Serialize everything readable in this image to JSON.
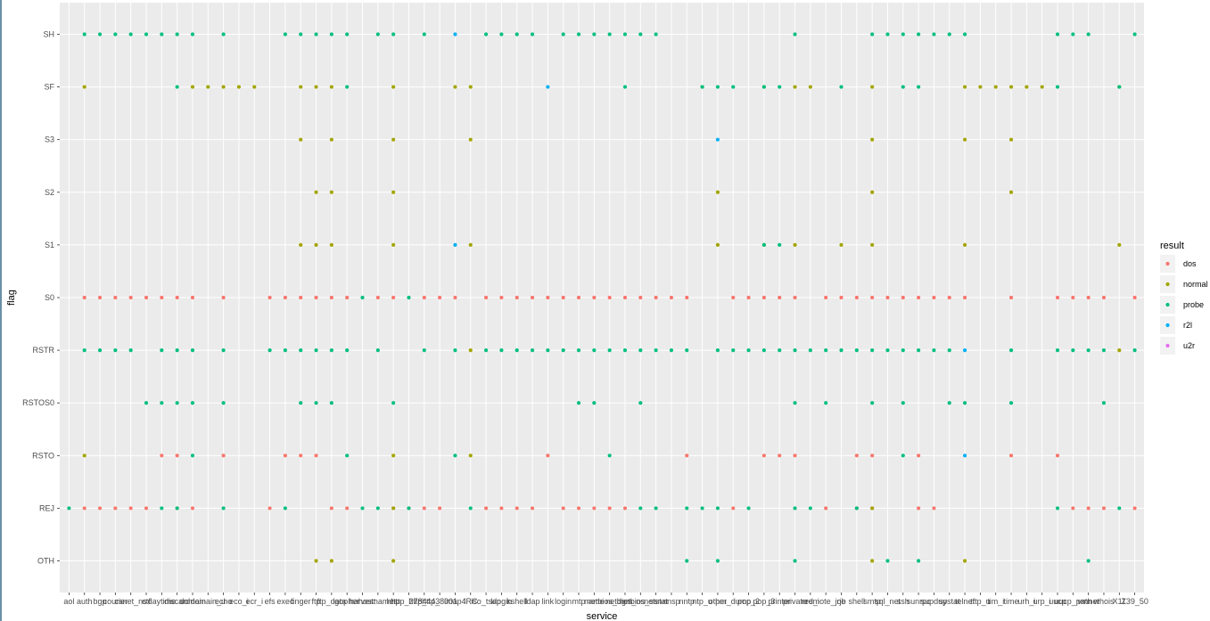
{
  "chart_data": {
    "type": "scatter",
    "xlabel": "service",
    "ylabel": "flag",
    "x_categories": [
      "aol",
      "auth",
      "bgp",
      "courier",
      "csnet_ns",
      "ctf",
      "daytime",
      "discard",
      "domain",
      "domain_u",
      "echo",
      "eco_i",
      "ecr_i",
      "efs",
      "exec",
      "finger",
      "ftp",
      "ftp_data",
      "gopher",
      "harvest",
      "hostnames",
      "http",
      "http_2784",
      "http_443",
      "http_8001",
      "imap4",
      "IRC",
      "iso_tsap",
      "klogin",
      "kshell",
      "ldap",
      "link",
      "login",
      "mtp",
      "name",
      "netbios_dgm",
      "netbios_ns",
      "netbios_ssn",
      "netstat",
      "nnsp",
      "nntp",
      "ntp_u",
      "other",
      "pm_dump",
      "pop_2",
      "pop_3",
      "printer",
      "private",
      "red_i",
      "remote_job",
      "rje",
      "shell",
      "smtp",
      "sql_net",
      "ssh",
      "sunrpc",
      "supdup",
      "systat",
      "telnet",
      "tftp_u",
      "tim_i",
      "time",
      "urh_i",
      "urp_i",
      "uucp",
      "uucp_path",
      "vmnet",
      "whois",
      "X11",
      "Z39_50"
    ],
    "x_tick_labels": [
      "aol",
      "auth",
      "bgp",
      "courier",
      "csnet_ns",
      "ctf",
      "daytime",
      "discard",
      "domain",
      "domain_u",
      "echo",
      "eco_i",
      "ecr_i",
      "efs",
      "exec",
      "finger",
      "ftp",
      "ftp_data",
      "gopher",
      "harvest",
      "hostnames",
      "http",
      "http_2784",
      "http_443",
      "http_8001",
      "imap4",
      "IRC",
      "iso_tsap",
      "klogin",
      "kshell",
      "ldap",
      "link",
      "login",
      "mtp",
      "name",
      "netbios_dgm",
      "netbios_ns",
      "netbios_ssn",
      "netstat",
      "nnsp",
      "nntp",
      "ntp_u",
      "other",
      "pm_dump",
      "pop_2",
      "pop_3",
      "printer",
      "private",
      "red_i",
      "remote_job",
      "rje",
      "shell",
      "smtp",
      "sql_net",
      "ssh",
      "sunrpc",
      "supdup",
      "systat",
      "telnet",
      "tftp_u",
      "tim_i",
      "time",
      "urh_i",
      "urp_i",
      "uucp",
      "uucp_path",
      "vmnet",
      "whois",
      "X11",
      "Z39_50"
    ],
    "y_categories": [
      "OTH",
      "REJ",
      "RSTO",
      "RSTOS0",
      "RSTR",
      "S0",
      "S1",
      "S2",
      "S3",
      "SF",
      "SH"
    ],
    "legend": {
      "title": "result",
      "position": "right",
      "entries": [
        "dos",
        "normal",
        "probe",
        "r2l",
        "u2r"
      ]
    },
    "colors": {
      "dos": "#F8766D",
      "normal": "#A3A500",
      "probe": "#00BF7D",
      "r2l": "#00B0F6",
      "u2r": "#E76BF3"
    },
    "panel_background": "#EBEBEB",
    "grid": true,
    "points": {
      "dos": {
        "S0": [
          "auth",
          "bgp",
          "courier",
          "csnet_ns",
          "ctf",
          "daytime",
          "discard",
          "domain",
          "echo",
          "efs",
          "exec",
          "finger",
          "ftp",
          "ftp_data",
          "gopher",
          "hostnames",
          "http",
          "http_443",
          "http_8001",
          "imap4",
          "iso_tsap",
          "klogin",
          "kshell",
          "ldap",
          "link",
          "login",
          "mtp",
          "name",
          "netbios_dgm",
          "netbios_ns",
          "netbios_ssn",
          "netstat",
          "nnsp",
          "nntp",
          "pm_dump",
          "pop_2",
          "pop_3",
          "printer",
          "private",
          "remote_job",
          "rje",
          "shell",
          "smtp",
          "sql_net",
          "ssh",
          "sunrpc",
          "supdup",
          "systat",
          "telnet",
          "time",
          "uucp",
          "uucp_path",
          "vmnet",
          "whois",
          "Z39_50"
        ],
        "RSTO": [
          "daytime",
          "discard",
          "echo",
          "exec",
          "finger",
          "ftp",
          "link",
          "nntp",
          "pop_3",
          "printer",
          "private",
          "shell",
          "smtp",
          "sunrpc",
          "time",
          "uucp"
        ],
        "REJ": [
          "auth",
          "bgp",
          "courier",
          "csnet_ns",
          "ctf",
          "discard",
          "domain",
          "efs",
          "ftp_data",
          "gopher",
          "http",
          "http_2784",
          "http_443",
          "http_8001",
          "iso_tsap",
          "klogin",
          "kshell",
          "ldap",
          "login",
          "mtp",
          "name",
          "netbios_dgm",
          "netbios_ns",
          "pm_dump",
          "remote_job",
          "shell",
          "smtp",
          "sunrpc",
          "supdup",
          "uucp_path",
          "vmnet",
          "whois",
          "Z39_50"
        ]
      },
      "normal": {
        "SF": [
          "auth",
          "domain",
          "domain_u",
          "echo",
          "eco_i",
          "ecr_i",
          "finger",
          "ftp",
          "ftp_data",
          "http",
          "imap4",
          "IRC",
          "ntp_u",
          "pop_3",
          "private",
          "red_i",
          "smtp",
          "telnet",
          "tftp_u",
          "tim_i",
          "time",
          "urh_i",
          "urp_i",
          "X11"
        ],
        "S3": [
          "finger",
          "ftp_data",
          "http",
          "IRC",
          "smtp",
          "telnet",
          "time"
        ],
        "S2": [
          "ftp",
          "ftp_data",
          "http",
          "other",
          "smtp",
          "time"
        ],
        "S1": [
          "finger",
          "ftp",
          "ftp_data",
          "http",
          "IRC",
          "other",
          "pop_3",
          "private",
          "rje",
          "smtp",
          "telnet",
          "X11"
        ],
        "RSTR": [
          "IRC",
          "X11"
        ],
        "RSTO": [
          "auth",
          "http",
          "IRC"
        ],
        "REJ": [
          "http",
          "smtp"
        ],
        "OTH": [
          "ftp",
          "ftp_data",
          "http",
          "smtp",
          "telnet"
        ]
      },
      "probe": {
        "SH": [
          "auth",
          "bgp",
          "courier",
          "csnet_ns",
          "ctf",
          "daytime",
          "discard",
          "domain",
          "echo",
          "exec",
          "finger",
          "ftp",
          "ftp_data",
          "gopher",
          "hostnames",
          "http",
          "http_443",
          "iso_tsap",
          "klogin",
          "kshell",
          "ldap",
          "login",
          "mtp",
          "name",
          "netbios_dgm",
          "netbios_ns",
          "netbios_ssn",
          "netstat",
          "private",
          "smtp",
          "sql_net",
          "ssh",
          "sunrpc",
          "supdup",
          "systat",
          "telnet",
          "uucp",
          "uucp_path",
          "vmnet",
          "Z39_50"
        ],
        "SF": [
          "discard",
          "gopher",
          "netbios_ns",
          "ntp_u",
          "other",
          "pm_dump",
          "pop_3",
          "printer",
          "rje",
          "ssh",
          "sunrpc",
          "uucp",
          "X11"
        ],
        "S1": [
          "pop_3",
          "printer"
        ],
        "S0": [
          "harvest",
          "http_2784"
        ],
        "RSTR": [
          "auth",
          "bgp",
          "courier",
          "csnet_ns",
          "daytime",
          "discard",
          "domain",
          "echo",
          "efs",
          "exec",
          "finger",
          "ftp",
          "ftp_data",
          "gopher",
          "hostnames",
          "http_443",
          "imap4",
          "iso_tsap",
          "klogin",
          "kshell",
          "ldap",
          "link",
          "login",
          "mtp",
          "name",
          "netbios_dgm",
          "netbios_ns",
          "netbios_ssn",
          "netstat",
          "nnsp",
          "nntp",
          "other",
          "pm_dump",
          "pop_2",
          "pop_3",
          "printer",
          "private",
          "red_i",
          "remote_job",
          "rje",
          "shell",
          "smtp",
          "sql_net",
          "ssh",
          "sunrpc",
          "supdup",
          "systat",
          "time",
          "uucp",
          "uucp_path",
          "vmnet",
          "whois",
          "Z39_50"
        ],
        "RSTOS0": [
          "ctf",
          "daytime",
          "discard",
          "domain",
          "echo",
          "finger",
          "ftp",
          "ftp_data",
          "http",
          "mtp",
          "name",
          "netbios_ssn",
          "private",
          "remote_job",
          "smtp",
          "ssh",
          "systat",
          "telnet",
          "time",
          "whois"
        ],
        "RSTO": [
          "domain",
          "gopher",
          "imap4",
          "netbios_dgm",
          "ssh"
        ],
        "REJ": [
          "aol",
          "daytime",
          "discard",
          "echo",
          "exec",
          "harvest",
          "hostnames",
          "http_2784",
          "IRC",
          "netbios_ssn",
          "netstat",
          "nntp",
          "ntp_u",
          "other",
          "pop_2",
          "private",
          "red_i",
          "shell",
          "uucp",
          "X11"
        ],
        "OTH": [
          "nntp",
          "other",
          "private",
          "sql_net",
          "sunrpc",
          "vmnet"
        ]
      },
      "r2l": {
        "SH": [
          "imap4"
        ],
        "SF": [
          "link"
        ],
        "S3": [
          "other"
        ],
        "S1": [
          "imap4"
        ],
        "RSTR": [
          "telnet"
        ],
        "RSTO": [
          "telnet"
        ]
      },
      "u2r": {}
    }
  }
}
